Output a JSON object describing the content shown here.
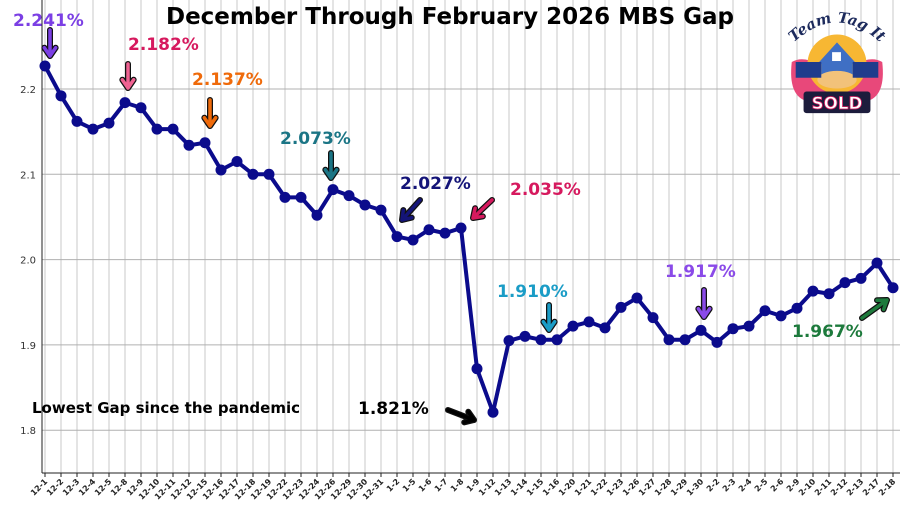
{
  "chart_data": {
    "type": "line",
    "title": "December Through February 2026 MBS Gap",
    "xlabel": "",
    "ylabel": "",
    "ylim": [
      1.75,
      2.25
    ],
    "yticks": [
      "1.8",
      "1.9",
      "2.0",
      "2.1",
      "2.2"
    ],
    "grid": true,
    "line_color": "#0b0b8c",
    "categories": [
      "12-1",
      "12-2",
      "12-3",
      "12-4",
      "12-5",
      "12-8",
      "12-9",
      "12-10",
      "12-11",
      "12-12",
      "12-15",
      "12-16",
      "12-17",
      "12-18",
      "12-19",
      "12-22",
      "12-23",
      "12-24",
      "12-26",
      "12-29",
      "12-30",
      "12-31",
      "1-2",
      "1-5",
      "1-6",
      "1-7",
      "1-8",
      "1-9",
      "1-12",
      "1-13",
      "1-14",
      "1-15",
      "1-16",
      "1-20",
      "1-21",
      "1-22",
      "1-23",
      "1-26",
      "1-27",
      "1-28",
      "1-29",
      "1-30",
      "2-2",
      "2-3",
      "2-4",
      "2-5",
      "2-6",
      "2-9",
      "2-10",
      "2-11",
      "2-12",
      "2-13",
      "2-17",
      "2-18"
    ],
    "values": [
      2.227,
      2.192,
      2.162,
      2.153,
      2.16,
      2.184,
      2.178,
      2.153,
      2.153,
      2.134,
      2.137,
      2.105,
      2.115,
      2.1,
      2.1,
      2.073,
      2.073,
      2.052,
      2.082,
      2.075,
      2.064,
      2.058,
      2.027,
      2.023,
      2.035,
      2.031,
      2.037,
      1.872,
      1.821,
      1.905,
      1.91,
      1.906,
      1.906,
      1.922,
      1.927,
      1.92,
      1.944,
      1.955,
      1.932,
      1.906,
      1.906,
      1.917,
      1.903,
      1.919,
      1.922,
      1.94,
      1.934,
      1.943,
      1.963,
      1.96,
      1.973,
      1.978,
      1.996,
      1.967
    ],
    "annotations": [
      {
        "text": "2.241%",
        "color": "#7b3fe4"
      },
      {
        "text": "2.182%",
        "color": "#d6195e"
      },
      {
        "text": "2.137%",
        "color": "#ef6a0a"
      },
      {
        "text": "2.073%",
        "color": "#1b7585"
      },
      {
        "text": "2.027%",
        "color": "#141478"
      },
      {
        "text": "2.035%",
        "color": "#d6195e"
      },
      {
        "text": "1.910%",
        "color": "#1a9cc6"
      },
      {
        "text": "1.917%",
        "color": "#8a4ae8"
      },
      {
        "text": "1.967%",
        "color": "#1d7a3c"
      },
      {
        "text": "1.821%",
        "color": "#000000"
      },
      {
        "text": "Lowest Gap since the pandemic",
        "color": "#000000"
      }
    ]
  },
  "logo": {
    "top_text": "Team Tag It",
    "badge_text": "SOLD"
  }
}
